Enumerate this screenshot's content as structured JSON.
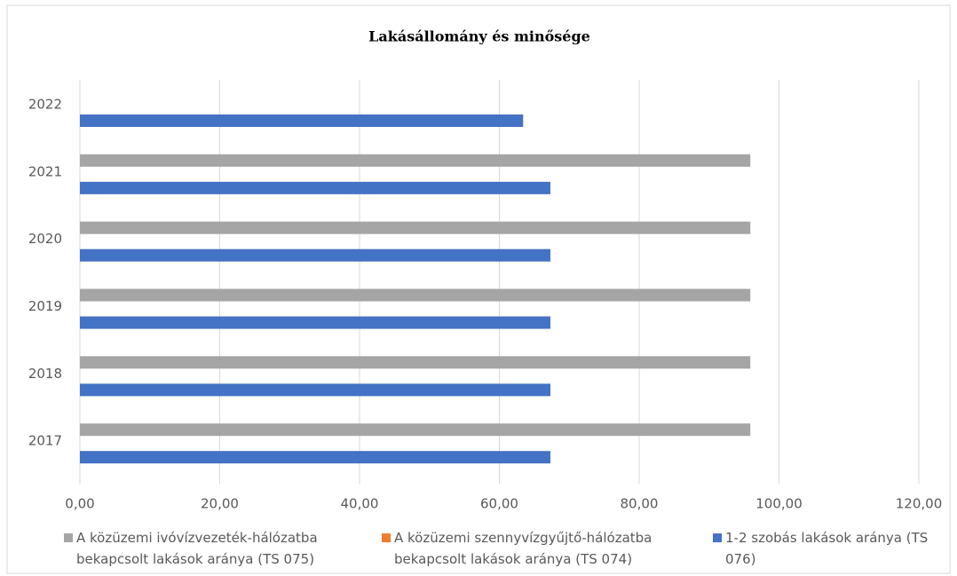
{
  "chart_data": {
    "type": "bar",
    "orientation": "horizontal",
    "title": "Lakásállomány és minősége",
    "categories": [
      "2017",
      "2018",
      "2019",
      "2020",
      "2021",
      "2022"
    ],
    "series": [
      {
        "name": "A közüzemi ivóvízvezeték-hálózatba bekapcsolt lakások aránya (TS 075)",
        "color": "#a5a5a5",
        "values": [
          95.9,
          95.9,
          95.9,
          95.9,
          95.9,
          null
        ]
      },
      {
        "name": "A közüzemi szennyvízgyűjtő-hálózatba bekapcsolt lakások aránya (TS 074)",
        "color": "#ed7d31",
        "values": [
          null,
          null,
          null,
          null,
          null,
          null
        ]
      },
      {
        "name": "1-2 szobás lakások aránya (TS 076)",
        "color": "#4472c4",
        "values": [
          67.3,
          67.3,
          67.3,
          67.3,
          67.3,
          63.4
        ]
      }
    ],
    "xlim": [
      0,
      120
    ],
    "xticks": [
      {
        "value": 0,
        "label": "0,00"
      },
      {
        "value": 20,
        "label": "20,00"
      },
      {
        "value": 40,
        "label": "40,00"
      },
      {
        "value": 60,
        "label": "60,00"
      },
      {
        "value": 80,
        "label": "80,00"
      },
      {
        "value": 100,
        "label": "100,00"
      },
      {
        "value": 120,
        "label": "120,00"
      }
    ],
    "grid": true,
    "legend": "bottom"
  }
}
